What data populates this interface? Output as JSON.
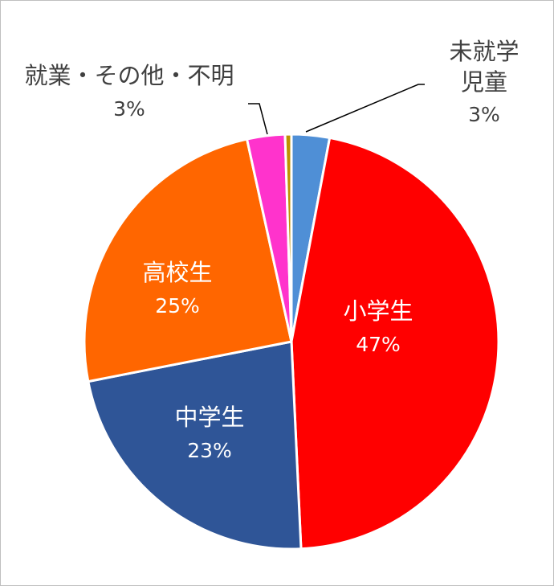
{
  "chart_data": {
    "type": "pie",
    "categories": [
      "未就学児童",
      "小学生",
      "中学生",
      "高校生",
      "就業・その他・不明",
      null
    ],
    "values": [
      3,
      47,
      23,
      25,
      3,
      0.5
    ],
    "value_labels": [
      "3%",
      "47%",
      "23%",
      "25%",
      "3%",
      null
    ],
    "colors": [
      "#4f8fd6",
      "#ff0000",
      "#2f5597",
      "#ff6600",
      "#ff33cc",
      "#bf9000"
    ]
  }
}
